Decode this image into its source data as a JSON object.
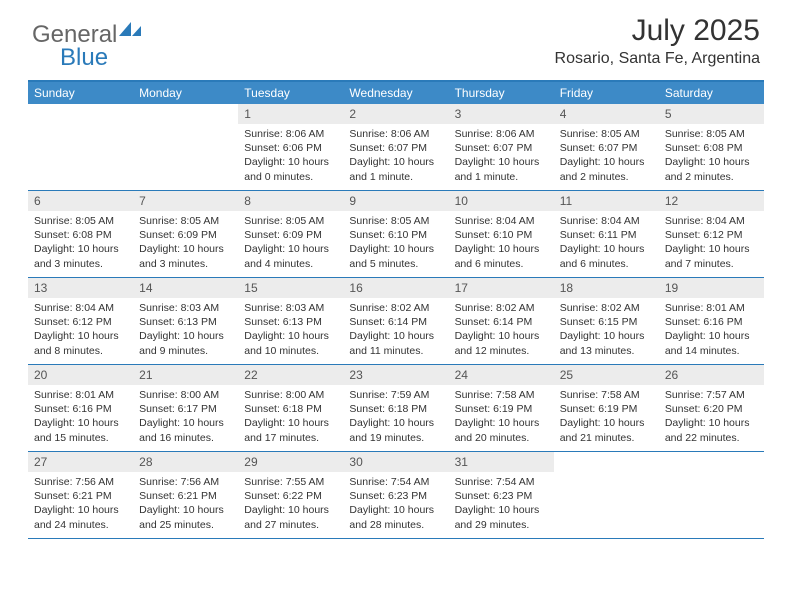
{
  "brand": {
    "part1": "General",
    "part2": "Blue"
  },
  "title": "July 2025",
  "location": "Rosario, Santa Fe, Argentina",
  "colors": {
    "header_bg": "#3d8ac7",
    "border": "#2a7ab9",
    "daynum_bg": "#ececec",
    "text": "#333333"
  },
  "day_names": [
    "Sunday",
    "Monday",
    "Tuesday",
    "Wednesday",
    "Thursday",
    "Friday",
    "Saturday"
  ],
  "weeks": [
    [
      {
        "n": "",
        "sr": "",
        "ss": "",
        "dl": ""
      },
      {
        "n": "",
        "sr": "",
        "ss": "",
        "dl": ""
      },
      {
        "n": "1",
        "sr": "Sunrise: 8:06 AM",
        "ss": "Sunset: 6:06 PM",
        "dl": "Daylight: 10 hours and 0 minutes."
      },
      {
        "n": "2",
        "sr": "Sunrise: 8:06 AM",
        "ss": "Sunset: 6:07 PM",
        "dl": "Daylight: 10 hours and 1 minute."
      },
      {
        "n": "3",
        "sr": "Sunrise: 8:06 AM",
        "ss": "Sunset: 6:07 PM",
        "dl": "Daylight: 10 hours and 1 minute."
      },
      {
        "n": "4",
        "sr": "Sunrise: 8:05 AM",
        "ss": "Sunset: 6:07 PM",
        "dl": "Daylight: 10 hours and 2 minutes."
      },
      {
        "n": "5",
        "sr": "Sunrise: 8:05 AM",
        "ss": "Sunset: 6:08 PM",
        "dl": "Daylight: 10 hours and 2 minutes."
      }
    ],
    [
      {
        "n": "6",
        "sr": "Sunrise: 8:05 AM",
        "ss": "Sunset: 6:08 PM",
        "dl": "Daylight: 10 hours and 3 minutes."
      },
      {
        "n": "7",
        "sr": "Sunrise: 8:05 AM",
        "ss": "Sunset: 6:09 PM",
        "dl": "Daylight: 10 hours and 3 minutes."
      },
      {
        "n": "8",
        "sr": "Sunrise: 8:05 AM",
        "ss": "Sunset: 6:09 PM",
        "dl": "Daylight: 10 hours and 4 minutes."
      },
      {
        "n": "9",
        "sr": "Sunrise: 8:05 AM",
        "ss": "Sunset: 6:10 PM",
        "dl": "Daylight: 10 hours and 5 minutes."
      },
      {
        "n": "10",
        "sr": "Sunrise: 8:04 AM",
        "ss": "Sunset: 6:10 PM",
        "dl": "Daylight: 10 hours and 6 minutes."
      },
      {
        "n": "11",
        "sr": "Sunrise: 8:04 AM",
        "ss": "Sunset: 6:11 PM",
        "dl": "Daylight: 10 hours and 6 minutes."
      },
      {
        "n": "12",
        "sr": "Sunrise: 8:04 AM",
        "ss": "Sunset: 6:12 PM",
        "dl": "Daylight: 10 hours and 7 minutes."
      }
    ],
    [
      {
        "n": "13",
        "sr": "Sunrise: 8:04 AM",
        "ss": "Sunset: 6:12 PM",
        "dl": "Daylight: 10 hours and 8 minutes."
      },
      {
        "n": "14",
        "sr": "Sunrise: 8:03 AM",
        "ss": "Sunset: 6:13 PM",
        "dl": "Daylight: 10 hours and 9 minutes."
      },
      {
        "n": "15",
        "sr": "Sunrise: 8:03 AM",
        "ss": "Sunset: 6:13 PM",
        "dl": "Daylight: 10 hours and 10 minutes."
      },
      {
        "n": "16",
        "sr": "Sunrise: 8:02 AM",
        "ss": "Sunset: 6:14 PM",
        "dl": "Daylight: 10 hours and 11 minutes."
      },
      {
        "n": "17",
        "sr": "Sunrise: 8:02 AM",
        "ss": "Sunset: 6:14 PM",
        "dl": "Daylight: 10 hours and 12 minutes."
      },
      {
        "n": "18",
        "sr": "Sunrise: 8:02 AM",
        "ss": "Sunset: 6:15 PM",
        "dl": "Daylight: 10 hours and 13 minutes."
      },
      {
        "n": "19",
        "sr": "Sunrise: 8:01 AM",
        "ss": "Sunset: 6:16 PM",
        "dl": "Daylight: 10 hours and 14 minutes."
      }
    ],
    [
      {
        "n": "20",
        "sr": "Sunrise: 8:01 AM",
        "ss": "Sunset: 6:16 PM",
        "dl": "Daylight: 10 hours and 15 minutes."
      },
      {
        "n": "21",
        "sr": "Sunrise: 8:00 AM",
        "ss": "Sunset: 6:17 PM",
        "dl": "Daylight: 10 hours and 16 minutes."
      },
      {
        "n": "22",
        "sr": "Sunrise: 8:00 AM",
        "ss": "Sunset: 6:18 PM",
        "dl": "Daylight: 10 hours and 17 minutes."
      },
      {
        "n": "23",
        "sr": "Sunrise: 7:59 AM",
        "ss": "Sunset: 6:18 PM",
        "dl": "Daylight: 10 hours and 19 minutes."
      },
      {
        "n": "24",
        "sr": "Sunrise: 7:58 AM",
        "ss": "Sunset: 6:19 PM",
        "dl": "Daylight: 10 hours and 20 minutes."
      },
      {
        "n": "25",
        "sr": "Sunrise: 7:58 AM",
        "ss": "Sunset: 6:19 PM",
        "dl": "Daylight: 10 hours and 21 minutes."
      },
      {
        "n": "26",
        "sr": "Sunrise: 7:57 AM",
        "ss": "Sunset: 6:20 PM",
        "dl": "Daylight: 10 hours and 22 minutes."
      }
    ],
    [
      {
        "n": "27",
        "sr": "Sunrise: 7:56 AM",
        "ss": "Sunset: 6:21 PM",
        "dl": "Daylight: 10 hours and 24 minutes."
      },
      {
        "n": "28",
        "sr": "Sunrise: 7:56 AM",
        "ss": "Sunset: 6:21 PM",
        "dl": "Daylight: 10 hours and 25 minutes."
      },
      {
        "n": "29",
        "sr": "Sunrise: 7:55 AM",
        "ss": "Sunset: 6:22 PM",
        "dl": "Daylight: 10 hours and 27 minutes."
      },
      {
        "n": "30",
        "sr": "Sunrise: 7:54 AM",
        "ss": "Sunset: 6:23 PM",
        "dl": "Daylight: 10 hours and 28 minutes."
      },
      {
        "n": "31",
        "sr": "Sunrise: 7:54 AM",
        "ss": "Sunset: 6:23 PM",
        "dl": "Daylight: 10 hours and 29 minutes."
      },
      {
        "n": "",
        "sr": "",
        "ss": "",
        "dl": ""
      },
      {
        "n": "",
        "sr": "",
        "ss": "",
        "dl": ""
      }
    ]
  ]
}
